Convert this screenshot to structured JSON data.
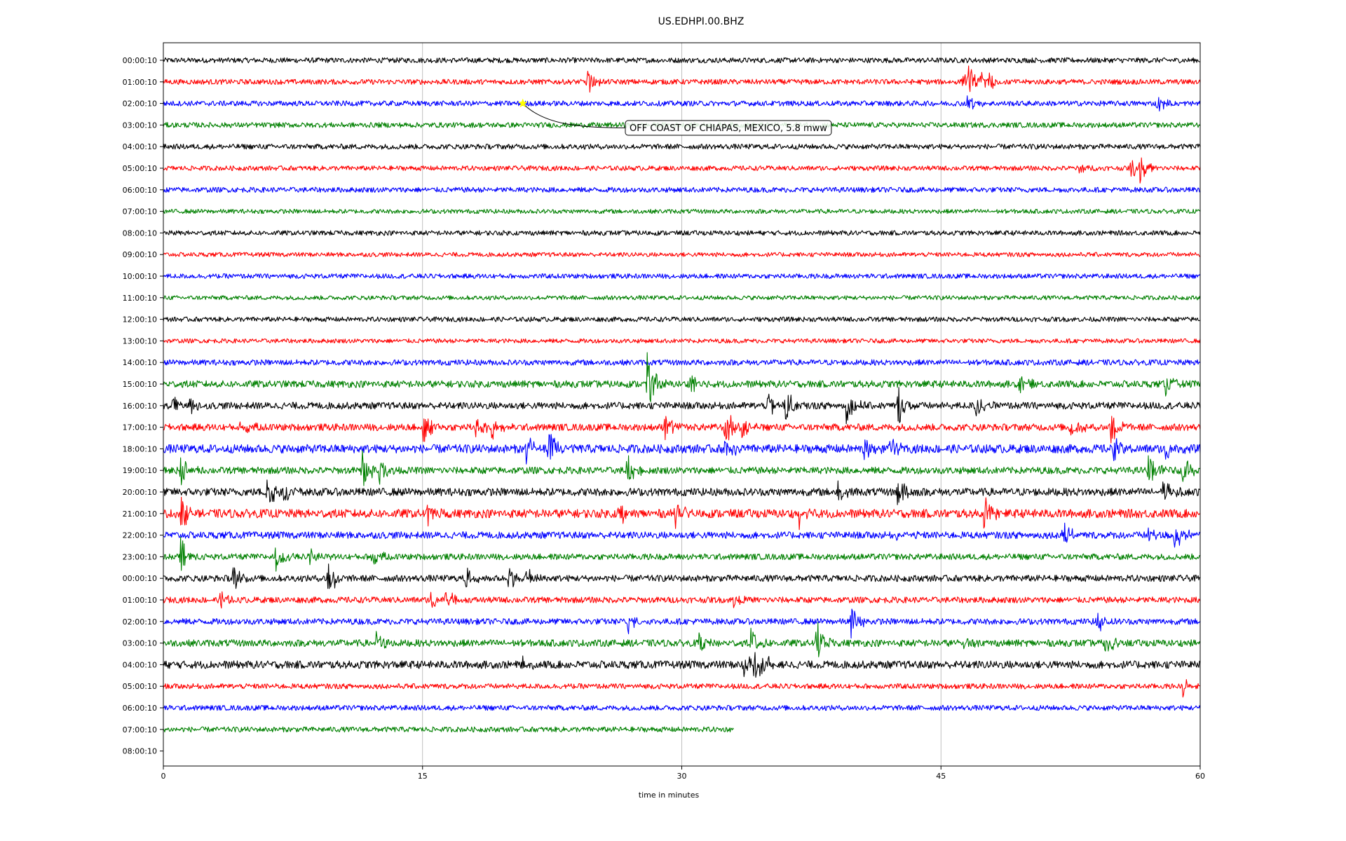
{
  "chart_data": {
    "type": "line",
    "title": "US.EDHPI.00.BHZ",
    "xlabel": "time in minutes",
    "ylabel": "",
    "xlim": [
      0,
      60
    ],
    "x_ticks": [
      "0",
      "15",
      "30",
      "45",
      "60"
    ],
    "x_grid": true,
    "colors": [
      "#000000",
      "#ff0000",
      "#0000ff",
      "#008000"
    ],
    "row_labels": [
      "00:00:10",
      "01:00:10",
      "02:00:10",
      "03:00:10",
      "04:00:10",
      "05:00:10",
      "06:00:10",
      "07:00:10",
      "08:00:10",
      "09:00:10",
      "10:00:10",
      "11:00:10",
      "12:00:10",
      "13:00:10",
      "14:00:10",
      "15:00:10",
      "16:00:10",
      "17:00:10",
      "18:00:10",
      "19:00:10",
      "20:00:10",
      "21:00:10",
      "22:00:10",
      "23:00:10",
      "00:00:10",
      "01:00:10",
      "02:00:10",
      "03:00:10",
      "04:00:10",
      "05:00:10",
      "06:00:10",
      "07:00:10",
      "08:00:10"
    ],
    "trace_end_minutes": [
      60,
      60,
      60,
      60,
      60,
      60,
      60,
      60,
      60,
      60,
      60,
      60,
      60,
      60,
      60,
      60,
      60,
      60,
      60,
      60,
      60,
      60,
      60,
      60,
      60,
      60,
      60,
      60,
      60,
      60,
      60,
      33,
      0
    ],
    "events": [
      [],
      [
        [
          24.5,
          0.6
        ],
        [
          46.2,
          0.5
        ],
        [
          46.6,
          0.7
        ],
        [
          47.8,
          0.5
        ],
        [
          47.3,
          0.4
        ]
      ],
      [
        [
          46.5,
          0.5
        ],
        [
          57.5,
          0.4
        ]
      ],
      [],
      [],
      [
        [
          56.0,
          0.5
        ],
        [
          56.5,
          0.7
        ],
        [
          53.0,
          0.3
        ]
      ],
      [],
      [],
      [],
      [],
      [],
      [],
      [],
      [],
      [],
      [
        [
          28.0,
          1.4
        ],
        [
          30.5,
          0.6
        ],
        [
          49.5,
          0.6
        ],
        [
          58.0,
          0.5
        ]
      ],
      [
        [
          0.5,
          0.6
        ],
        [
          1.5,
          0.6
        ],
        [
          35.0,
          0.7
        ],
        [
          36.0,
          1.0
        ],
        [
          39.5,
          0.9
        ],
        [
          42.5,
          1.0
        ],
        [
          47.0,
          0.6
        ]
      ],
      [
        [
          4.5,
          0.5
        ],
        [
          15.0,
          1.0
        ],
        [
          18.0,
          0.7
        ],
        [
          19.0,
          0.5
        ],
        [
          29.0,
          0.7
        ],
        [
          32.5,
          1.0
        ],
        [
          33.5,
          0.7
        ],
        [
          52.5,
          0.6
        ],
        [
          54.8,
          1.0
        ]
      ],
      [
        [
          21.0,
          0.7
        ],
        [
          22.3,
          0.9
        ],
        [
          32.5,
          0.7
        ],
        [
          40.5,
          0.6
        ],
        [
          42.0,
          0.5
        ],
        [
          55.0,
          0.5
        ],
        [
          58.0,
          0.6
        ]
      ],
      [
        [
          1.0,
          0.9
        ],
        [
          11.5,
          0.9
        ],
        [
          12.5,
          0.6
        ],
        [
          26.8,
          1.0
        ],
        [
          57.0,
          0.9
        ],
        [
          59.0,
          0.9
        ]
      ],
      [
        [
          6.0,
          0.9
        ],
        [
          7.0,
          0.6
        ],
        [
          39.0,
          0.6
        ],
        [
          42.5,
          1.0
        ],
        [
          57.8,
          0.8
        ]
      ],
      [
        [
          1.0,
          0.8
        ],
        [
          15.3,
          0.6
        ],
        [
          26.3,
          0.7
        ],
        [
          29.5,
          0.8
        ],
        [
          36.8,
          0.8
        ],
        [
          47.5,
          0.9
        ]
      ],
      [
        [
          42.5,
          0.5
        ],
        [
          52.0,
          0.7
        ],
        [
          57.0,
          0.6
        ],
        [
          58.5,
          0.8
        ]
      ],
      [
        [
          1.0,
          0.9
        ],
        [
          6.5,
          0.6
        ],
        [
          8.5,
          0.5
        ],
        [
          12.0,
          0.6
        ]
      ],
      [
        [
          4.0,
          0.7
        ],
        [
          9.5,
          1.0
        ],
        [
          17.5,
          0.5
        ],
        [
          20.0,
          0.6
        ],
        [
          21.0,
          0.5
        ]
      ],
      [
        [
          3.3,
          0.4
        ],
        [
          15.5,
          0.5
        ],
        [
          16.3,
          0.6
        ],
        [
          33.0,
          0.3
        ]
      ],
      [
        [
          26.8,
          0.7
        ],
        [
          39.8,
          0.9
        ],
        [
          54.0,
          0.6
        ]
      ],
      [
        [
          12.3,
          0.5
        ],
        [
          31.0,
          0.4
        ],
        [
          34.0,
          0.9
        ],
        [
          37.8,
          1.1
        ],
        [
          46.3,
          0.4
        ],
        [
          54.5,
          0.6
        ]
      ],
      [
        [
          20.8,
          0.5
        ],
        [
          33.5,
          1.0
        ],
        [
          34.2,
          0.8
        ],
        [
          35.0,
          0.4
        ]
      ],
      [
        [
          59.0,
          0.4
        ]
      ],
      [],
      [],
      []
    ],
    "noise_amplitude": [
      0.12,
      0.12,
      0.12,
      0.12,
      0.12,
      0.11,
      0.12,
      0.1,
      0.11,
      0.1,
      0.11,
      0.1,
      0.11,
      0.1,
      0.13,
      0.16,
      0.16,
      0.16,
      0.2,
      0.16,
      0.18,
      0.2,
      0.16,
      0.14,
      0.15,
      0.14,
      0.14,
      0.16,
      0.18,
      0.12,
      0.12,
      0.12,
      0
    ],
    "annotation": {
      "text": "OFF COAST OF CHIAPAS, MEXICO, 5.8 mww",
      "row": 2,
      "minute": 20.8,
      "marker_color": "#ffff00"
    }
  }
}
